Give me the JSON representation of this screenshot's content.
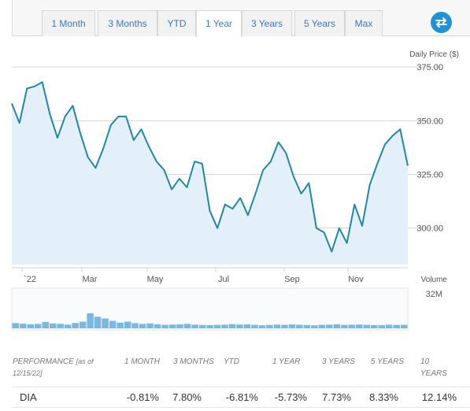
{
  "tabs": [
    {
      "label": "1 Month"
    },
    {
      "label": "3 Months"
    },
    {
      "label": "YTD"
    },
    {
      "label": "1 Year",
      "active": true
    },
    {
      "label": "3 Years"
    },
    {
      "label": "5 Years"
    },
    {
      "label": "Max"
    }
  ],
  "swap_icon": "swap-arrows-icon",
  "chart": {
    "price_title": "Daily Price ($)",
    "volume_title": "Volume",
    "volume_max_label": "32M"
  },
  "performance": {
    "header_label": "PERFORMANCE",
    "as_of": "[as of 12/15/22]",
    "columns": [
      "1 MONTH",
      "3 MONTHS",
      "YTD",
      "1 YEAR",
      "3 YEARS",
      "5 YEARS",
      "10 YEARS"
    ],
    "row": {
      "ticker": "DIA",
      "values": [
        "-0.81%",
        "7.80%",
        "-6.81%",
        "-5.73%",
        "7.73%",
        "8.33%",
        "12.14%"
      ]
    }
  },
  "colors": {
    "line": "#2186a8",
    "area": "#e3f0fa",
    "volume_bar": "#7ab8e0",
    "tab_text": "#3d78b8",
    "swap_button": "#1f93d6"
  },
  "chart_data": [
    {
      "type": "area",
      "title": "Daily Price ($)",
      "xlabel": "",
      "ylabel": "",
      "x_tick_labels": [
        "`22",
        "Mar",
        "May",
        "Jul",
        "Sep",
        "Nov"
      ],
      "y_ticks": [
        300.0,
        325.0,
        350.0,
        375.0
      ],
      "y_tick_labels": [
        "300.00",
        "325.00",
        "350.00",
        "375.00"
      ],
      "ylim": [
        283,
        378
      ],
      "grid": "horizontal",
      "x": [
        "2021-12-15",
        "2021-12-22",
        "2021-12-29",
        "2022-01-05",
        "2022-01-12",
        "2022-01-19",
        "2022-01-26",
        "2022-02-02",
        "2022-02-09",
        "2022-02-16",
        "2022-02-23",
        "2022-03-02",
        "2022-03-09",
        "2022-03-16",
        "2022-03-23",
        "2022-03-30",
        "2022-04-06",
        "2022-04-13",
        "2022-04-20",
        "2022-04-27",
        "2022-05-04",
        "2022-05-11",
        "2022-05-18",
        "2022-05-25",
        "2022-06-01",
        "2022-06-08",
        "2022-06-15",
        "2022-06-22",
        "2022-06-29",
        "2022-07-06",
        "2022-07-13",
        "2022-07-20",
        "2022-07-27",
        "2022-08-03",
        "2022-08-10",
        "2022-08-17",
        "2022-08-24",
        "2022-08-31",
        "2022-09-07",
        "2022-09-14",
        "2022-09-21",
        "2022-09-28",
        "2022-10-05",
        "2022-10-12",
        "2022-10-19",
        "2022-10-26",
        "2022-11-02",
        "2022-11-09",
        "2022-11-16",
        "2022-11-23",
        "2022-11-30",
        "2022-12-07",
        "2022-12-15"
      ],
      "values": [
        358,
        349,
        365,
        366,
        368,
        353,
        342,
        352,
        357,
        344,
        333,
        328,
        337,
        348,
        352,
        352,
        341,
        346,
        338,
        331,
        327,
        318,
        323,
        319,
        331,
        330,
        308,
        300,
        311,
        309,
        314,
        306,
        316,
        327,
        331,
        340,
        335,
        324,
        316,
        321,
        300,
        298,
        289,
        300,
        293,
        311,
        301,
        320,
        330,
        339,
        343,
        346,
        329
      ],
      "series": [
        {
          "name": "DIA",
          "values": [
            358,
            349,
            365,
            366,
            368,
            353,
            342,
            352,
            357,
            344,
            333,
            328,
            337,
            348,
            352,
            352,
            341,
            346,
            338,
            331,
            327,
            318,
            323,
            319,
            331,
            330,
            308,
            300,
            311,
            309,
            314,
            306,
            316,
            327,
            331,
            340,
            335,
            324,
            316,
            321,
            300,
            298,
            289,
            300,
            293,
            311,
            301,
            320,
            330,
            339,
            343,
            346,
            329
          ]
        }
      ]
    },
    {
      "type": "bar",
      "title": "Volume",
      "ylim": [
        0,
        32000000
      ],
      "y_tick_labels": [
        "32M"
      ],
      "values": [
        4.5,
        4.0,
        3.5,
        3.8,
        5.5,
        4.2,
        3.9,
        3.2,
        4.6,
        5.8,
        13.0,
        10.0,
        8.5,
        6.5,
        5.0,
        5.8,
        4.5,
        3.8,
        4.2,
        3.5,
        3.0,
        3.3,
        3.5,
        3.9,
        3.2,
        2.9,
        2.8,
        3.0,
        3.1,
        3.6,
        3.3,
        3.4,
        3.0,
        2.6,
        2.9,
        3.2,
        3.0,
        3.4,
        3.1,
        2.8,
        2.6,
        3.0,
        3.2,
        3.5,
        2.9,
        3.1,
        3.3,
        3.0,
        2.8,
        2.7,
        3.1,
        2.9,
        3.0
      ],
      "unit": "M"
    }
  ]
}
